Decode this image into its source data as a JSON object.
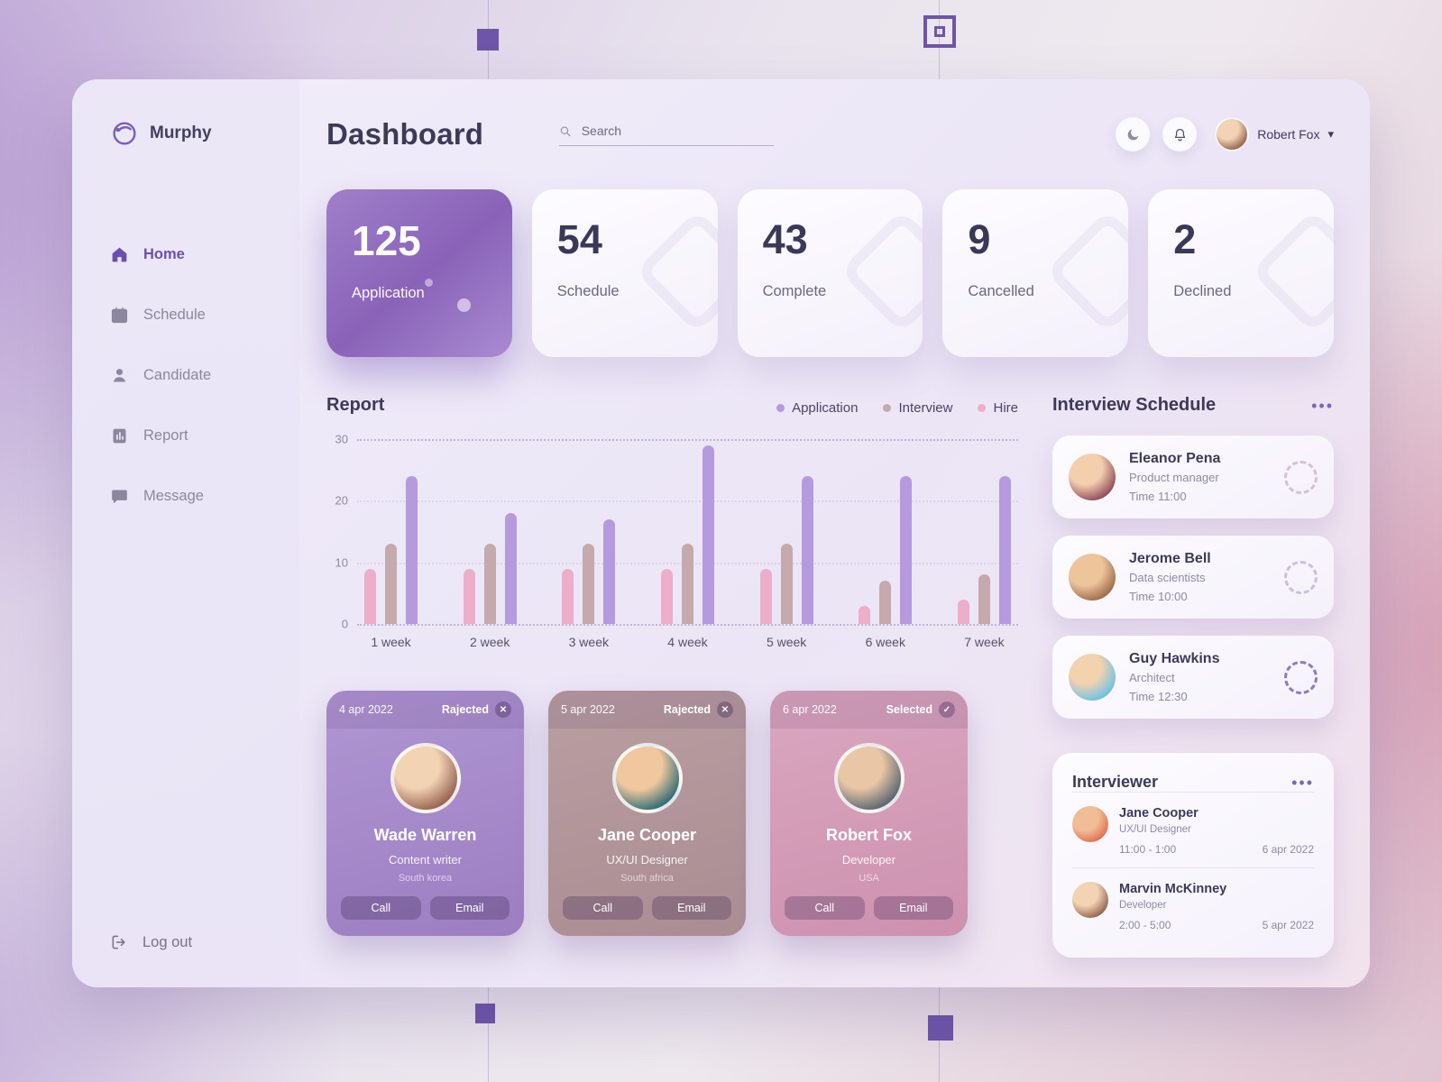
{
  "app": {
    "brand": "Murphy"
  },
  "sidebar": {
    "items": [
      {
        "label": "Home"
      },
      {
        "label": "Schedule"
      },
      {
        "label": "Candidate"
      },
      {
        "label": "Report"
      },
      {
        "label": "Message"
      }
    ],
    "logout": "Log out"
  },
  "header": {
    "title": "Dashboard",
    "search_placeholder": "Search",
    "user": "Robert Fox"
  },
  "stats": [
    {
      "value": "125",
      "label": "Application"
    },
    {
      "value": "54",
      "label": "Schedule"
    },
    {
      "value": "43",
      "label": "Complete"
    },
    {
      "value": "9",
      "label": "Cancelled"
    },
    {
      "value": "2",
      "label": "Declined"
    }
  ],
  "report": {
    "title": "Report"
  },
  "chart_data": {
    "type": "bar",
    "title": "Report",
    "categories": [
      "1 week",
      "2 week",
      "3 week",
      "4 week",
      "5 week",
      "6 week",
      "7 week"
    ],
    "series": [
      {
        "name": "Hire",
        "color": "#ecaec9",
        "values": [
          9,
          9,
          9,
          9,
          9,
          3,
          4
        ]
      },
      {
        "name": "Interview",
        "color": "#c5a9ac",
        "values": [
          13,
          13,
          13,
          13,
          13,
          7,
          8
        ]
      },
      {
        "name": "Application",
        "color": "#b59ade",
        "values": [
          24,
          18,
          17,
          29,
          24,
          24,
          24
        ]
      }
    ],
    "legend": [
      "Application",
      "Interview",
      "Hire"
    ],
    "legend_position": "top-right",
    "xlabel": "",
    "ylabel": "",
    "ylim": [
      0,
      30
    ],
    "yticks": [
      0,
      10,
      20,
      30
    ],
    "grid": "dotted"
  },
  "interview_schedule": {
    "title": "Interview Schedule",
    "items": [
      {
        "name": "Eleanor Pena",
        "role": "Product manager",
        "time": "Time 11:00"
      },
      {
        "name": "Jerome Bell",
        "role": "Data scientists",
        "time": "Time 10:00"
      },
      {
        "name": "Guy Hawkins",
        "role": "Architect",
        "time": "Time 12:30"
      }
    ]
  },
  "candidates": [
    {
      "date": "4 apr 2022",
      "status": "Rajected",
      "status_icon": "✕",
      "name": "Wade Warren",
      "role": "Content writer",
      "country": "South korea",
      "call": "Call",
      "email": "Email"
    },
    {
      "date": "5 apr 2022",
      "status": "Rajected",
      "status_icon": "✕",
      "name": "Jane Cooper",
      "role": "UX/UI Designer",
      "country": "South africa",
      "call": "Call",
      "email": "Email"
    },
    {
      "date": "6 apr 2022",
      "status": "Selected",
      "status_icon": "✓",
      "name": "Robert Fox",
      "role": "Developer",
      "country": "USA",
      "call": "Call",
      "email": "Email"
    }
  ],
  "interviewer": {
    "title": "Interviewer",
    "items": [
      {
        "name": "Jane Cooper",
        "role": "UX/UI Designer",
        "time": "11:00 - 1:00",
        "date": "6 apr 2022"
      },
      {
        "name": "Marvin McKinney",
        "role": "Developer",
        "time": "2:00 - 5:00",
        "date": "5 apr 2022"
      }
    ]
  }
}
